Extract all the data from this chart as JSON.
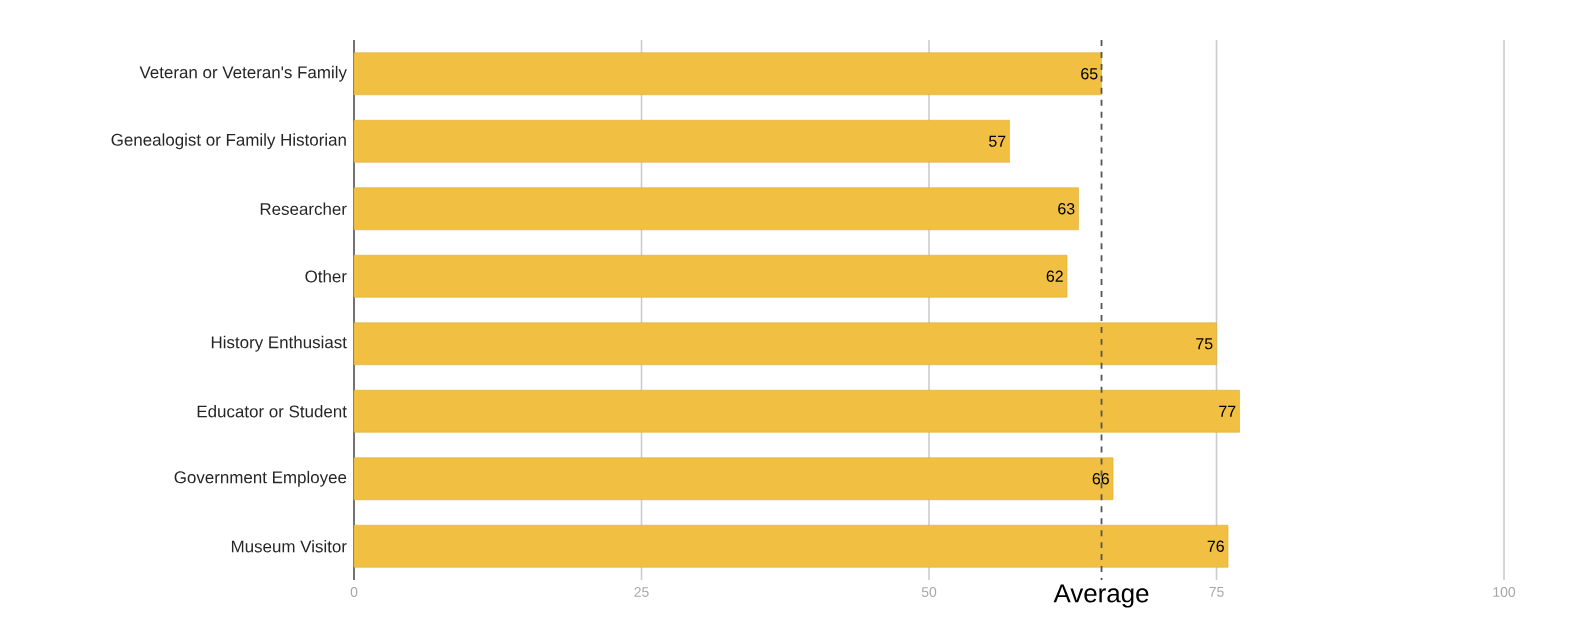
{
  "chart_data": {
    "type": "bar",
    "orientation": "horizontal",
    "categories": [
      "Veteran or Veteran's Family",
      "Genealogist or Family Historian",
      "Researcher",
      "Other",
      "History Enthusiast",
      "Educator or Student",
      "Government Employee",
      "Museum Visitor"
    ],
    "values": [
      65,
      57,
      63,
      62,
      75,
      77,
      66,
      76
    ],
    "color": "#f1c042",
    "xlim": [
      0,
      100
    ],
    "xticks": [
      0,
      25,
      50,
      75,
      100
    ],
    "grid": "x",
    "data_labels": true,
    "ref_lines": [
      {
        "axis": "x",
        "value": 65,
        "label": "Average",
        "line_style": "dashed",
        "color": "#555555"
      }
    ]
  }
}
